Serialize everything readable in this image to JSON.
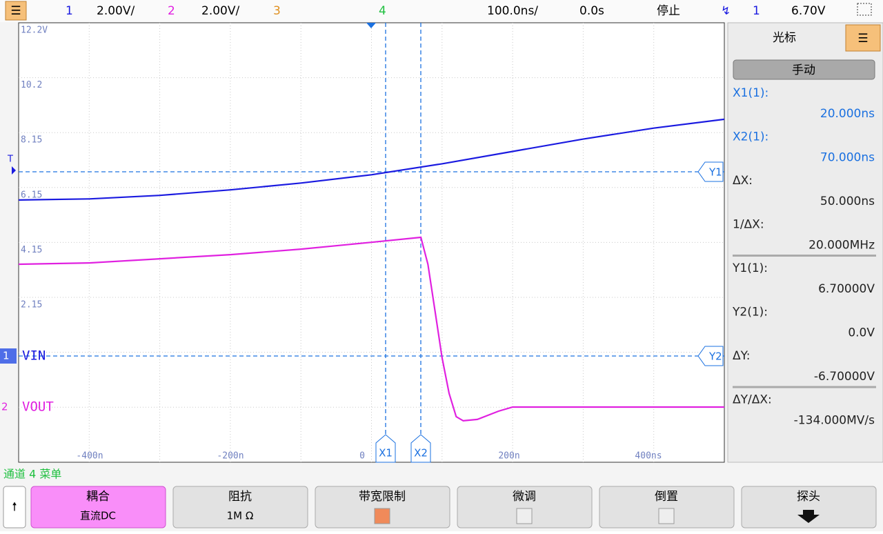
{
  "top_bar": {
    "ch1": "1",
    "ch1_scale": "2.00V/",
    "ch2": "2",
    "ch2_scale": "2.00V/",
    "ch3": "3",
    "ch4": "4",
    "timebase": "100.0ns/",
    "delay": "0.0s",
    "status": "停止",
    "trigger_source": "1",
    "trigger_level": "6.70V"
  },
  "screen": {
    "y_labels": [
      "12.2V",
      "10.2",
      "8.15",
      "6.15",
      "4.15",
      "2.15"
    ],
    "x_labels": [
      "-400n",
      "-200n",
      "0",
      "200n",
      "400ns"
    ],
    "markers": {
      "ch1_num": "1",
      "ch1_label": "VIN",
      "ch2_num": "2",
      "ch2_label": "VOUT",
      "trigger": "T",
      "y1": "Y1",
      "y2": "Y2",
      "x1": "X1",
      "x2": "X2"
    },
    "traces": [
      {
        "color": "#1a1ae0",
        "x": [
          -500,
          -400,
          -300,
          -200,
          -100,
          0,
          100,
          200,
          300,
          400,
          500
        ],
        "values": [
          5.68,
          5.72,
          5.85,
          6.05,
          6.3,
          6.6,
          7.0,
          7.45,
          7.9,
          8.3,
          8.62
        ]
      },
      {
        "color": "#e020e0",
        "x": [
          -500,
          -400,
          -300,
          -200,
          -100,
          0,
          70,
          80,
          90,
          100,
          110,
          120,
          130,
          150,
          180,
          200,
          300,
          500
        ],
        "values": [
          5.2,
          5.25,
          5.4,
          5.55,
          5.75,
          6.0,
          6.18,
          5.2,
          3.5,
          1.8,
          0.5,
          -0.35,
          -0.5,
          -0.45,
          -0.15,
          0,
          0,
          0
        ]
      }
    ]
  },
  "cursor_panel": {
    "title": "光标",
    "mode": "手动",
    "entries": [
      {
        "label": "X1(1):",
        "value": "20.000ns"
      },
      {
        "label": "X2(1):",
        "value": "70.000ns"
      },
      {
        "label": "ΔX:",
        "value": "50.000ns"
      },
      {
        "label": "1/ΔX:",
        "value": "20.000MHz"
      },
      {
        "label": "Y1(1):",
        "value": "6.70000V"
      },
      {
        "label": "Y2(1):",
        "value": "0.0V"
      },
      {
        "label": "ΔY:",
        "value": "-6.70000V"
      },
      {
        "label": "ΔY/ΔX:",
        "value": "-134.000MV/s"
      }
    ]
  },
  "softkeys": {
    "menu_title": "通道 4 菜单",
    "buttons": [
      {
        "label": "耦合",
        "value": "直流DC"
      },
      {
        "label": "阻抗",
        "value": "1M Ω"
      },
      {
        "label": "带宽限制"
      },
      {
        "label": "微调"
      },
      {
        "label": "倒置"
      },
      {
        "label": "探头"
      }
    ]
  }
}
